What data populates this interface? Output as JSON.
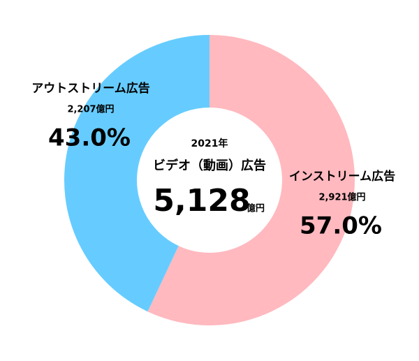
{
  "chart_data": {
    "type": "donut",
    "center_title": "2021年",
    "center_subtitle": "ビデオ（動画）広告",
    "total": 5128,
    "total_label": "5,128",
    "total_unit": "億円",
    "categories": [
      "インストリーム広告",
      "アウトストリーム広告"
    ],
    "values": [
      57.0,
      43.0
    ],
    "value_labels": [
      "57.0%",
      "43.0%"
    ],
    "amounts": [
      2921,
      2207
    ],
    "amount_labels": [
      "2,921億円",
      "2,207億円"
    ],
    "colors": [
      "#ffb9bf",
      "#66ccff"
    ]
  }
}
